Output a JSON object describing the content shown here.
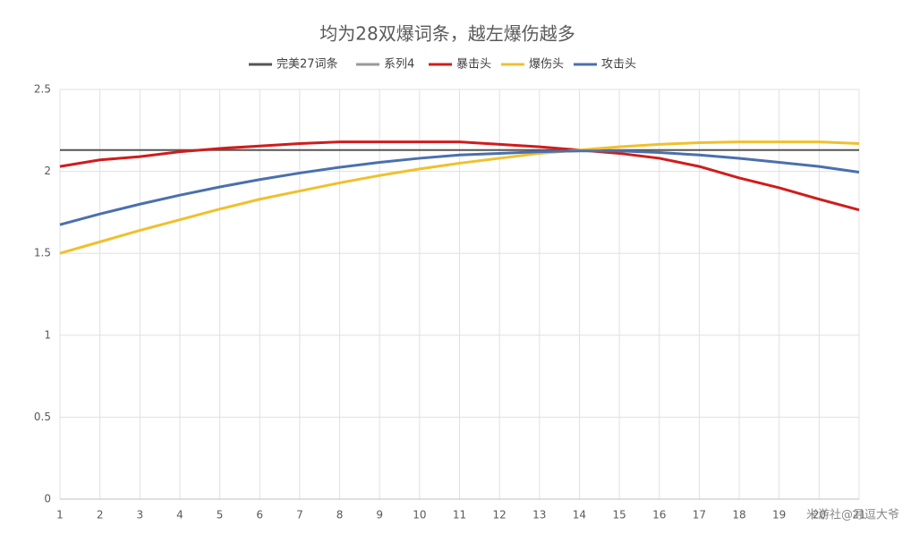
{
  "chart_data": {
    "type": "line",
    "title": "均为28双爆词条，越左爆伤越多",
    "categories": [
      "1",
      "2",
      "3",
      "4",
      "5",
      "6",
      "7",
      "8",
      "9",
      "10",
      "11",
      "12",
      "13",
      "14",
      "15",
      "16",
      "17",
      "18",
      "19",
      "20",
      "21"
    ],
    "series": [
      {
        "name": "完美27词条",
        "color": "#555555",
        "values": [
          2.13,
          2.13,
          2.13,
          2.13,
          2.13,
          2.13,
          2.13,
          2.13,
          2.13,
          2.13,
          2.13,
          2.13,
          2.13,
          2.13,
          2.13,
          2.13,
          2.13,
          2.13,
          2.13,
          2.13,
          2.13
        ]
      },
      {
        "name": "系列4",
        "color": "#999999",
        "values": [
          null,
          null,
          null,
          null,
          null,
          null,
          null,
          null,
          null,
          null,
          null,
          null,
          null,
          null,
          null,
          null,
          null,
          null,
          null,
          null,
          null
        ]
      },
      {
        "name": "暴击头",
        "color": "#d01c1c",
        "values": [
          2.03,
          2.07,
          2.09,
          2.12,
          2.14,
          2.155,
          2.17,
          2.18,
          2.18,
          2.18,
          2.18,
          2.165,
          2.15,
          2.13,
          2.11,
          2.08,
          2.03,
          1.96,
          1.9,
          1.83,
          1.765
        ]
      },
      {
        "name": "爆伤头",
        "color": "#f0c02c",
        "values": [
          1.5,
          1.57,
          1.64,
          1.705,
          1.77,
          1.83,
          1.88,
          1.93,
          1.975,
          2.015,
          2.05,
          2.08,
          2.11,
          2.13,
          2.15,
          2.165,
          2.175,
          2.18,
          2.18,
          2.18,
          2.17
        ]
      },
      {
        "name": "攻击头",
        "color": "#4a70ad",
        "values": [
          1.675,
          1.74,
          1.8,
          1.855,
          1.905,
          1.95,
          1.99,
          2.025,
          2.055,
          2.08,
          2.1,
          2.11,
          2.12,
          2.125,
          2.125,
          2.115,
          2.1,
          2.08,
          2.055,
          2.03,
          1.995
        ]
      }
    ],
    "ylim": [
      0,
      2.5
    ],
    "yticks": [
      0,
      0.5,
      1,
      1.5,
      2,
      2.5
    ],
    "grid": true
  },
  "watermark": "米游社@寻逗大爷"
}
